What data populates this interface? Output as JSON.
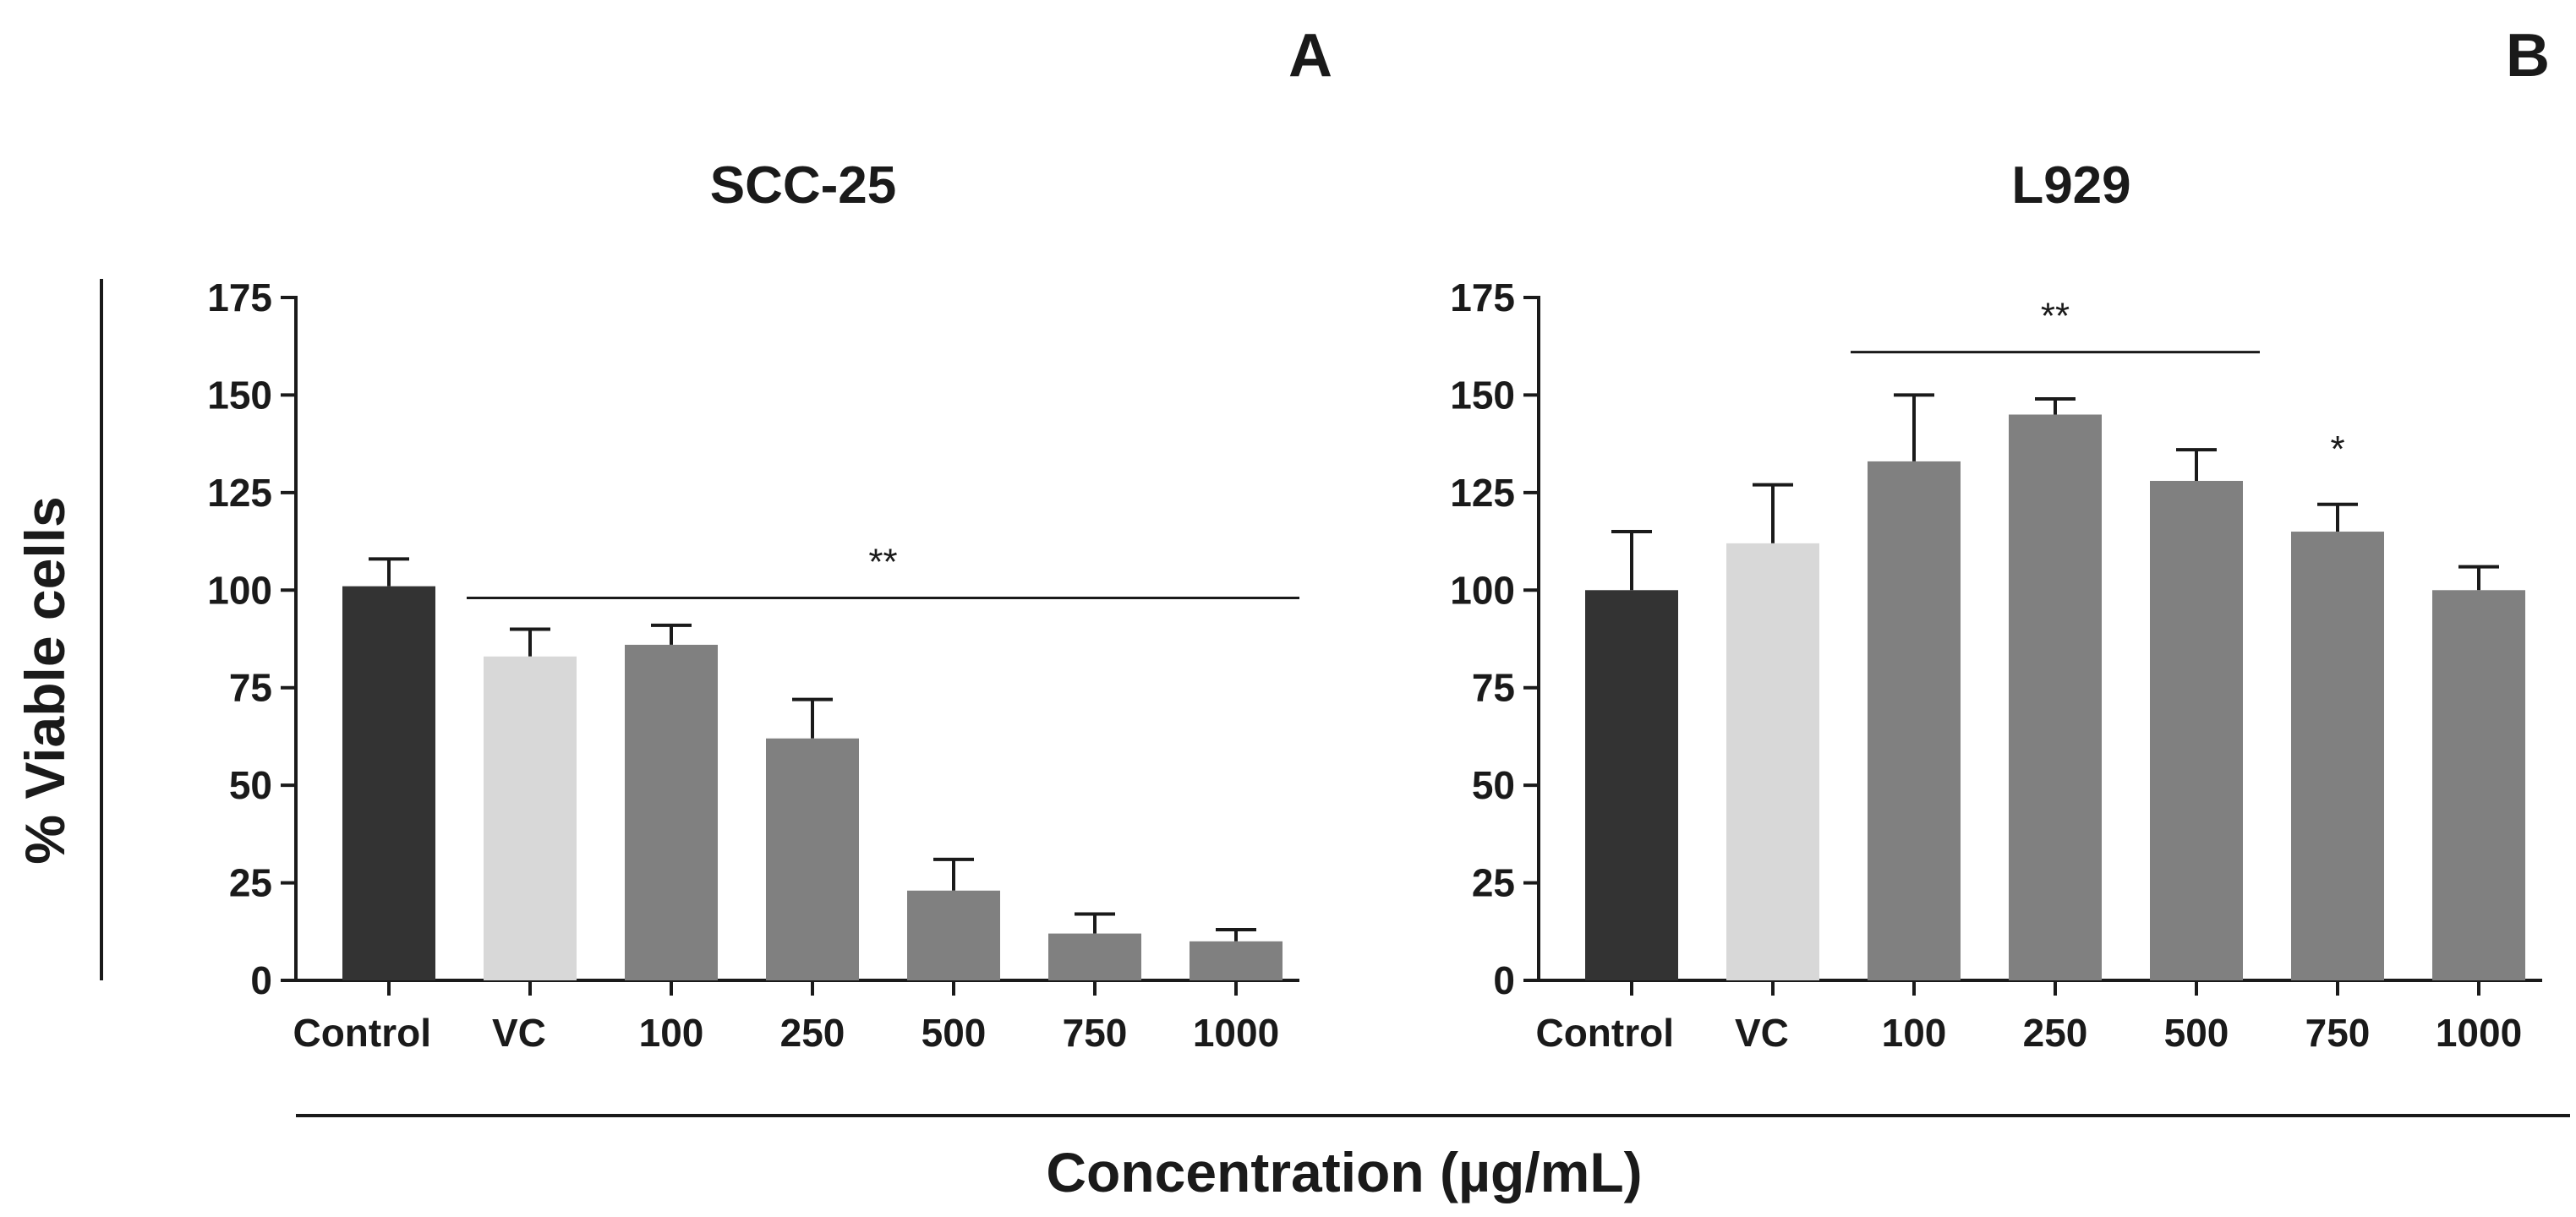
{
  "figure": {
    "ylabel": "% Viable cells",
    "xlabel": "Concentration (µg/mL)"
  },
  "colors": {
    "control": "#333333",
    "vc": "#d8d8d8",
    "treatment": "#808080",
    "axis": "#1a1a1a"
  },
  "chart_data": [
    {
      "type": "bar",
      "panel": "A",
      "title": "SCC-25",
      "categories": [
        "Control",
        "VC",
        "100",
        "250",
        "500",
        "750",
        "1000"
      ],
      "values": [
        101,
        83,
        86,
        62,
        23,
        12,
        10
      ],
      "errors": [
        7,
        7,
        5,
        10,
        8,
        5,
        3
      ],
      "ylim": [
        0,
        175
      ],
      "yticks": [
        0,
        25,
        50,
        75,
        100,
        125,
        150,
        175
      ],
      "xlabel": "Concentration (µg/mL)",
      "ylabel": "% Viable cells",
      "annotations": [
        {
          "text": "**",
          "from": "VC",
          "to": "1000",
          "y": 98
        }
      ]
    },
    {
      "type": "bar",
      "panel": "B",
      "title": "L929",
      "categories": [
        "Control",
        "VC",
        "100",
        "250",
        "500",
        "750",
        "1000"
      ],
      "values": [
        100,
        112,
        133,
        145,
        128,
        115,
        100
      ],
      "errors": [
        15,
        15,
        17,
        4,
        8,
        7,
        6
      ],
      "ylim": [
        0,
        175
      ],
      "yticks": [
        0,
        25,
        50,
        75,
        100,
        125,
        150,
        175
      ],
      "xlabel": "Concentration (µg/mL)",
      "ylabel": "% Viable cells",
      "annotations": [
        {
          "text": "**",
          "from": "100",
          "to": "500",
          "y": 161
        },
        {
          "text": "*",
          "from": "750",
          "to": "750",
          "y": 133
        }
      ]
    }
  ]
}
